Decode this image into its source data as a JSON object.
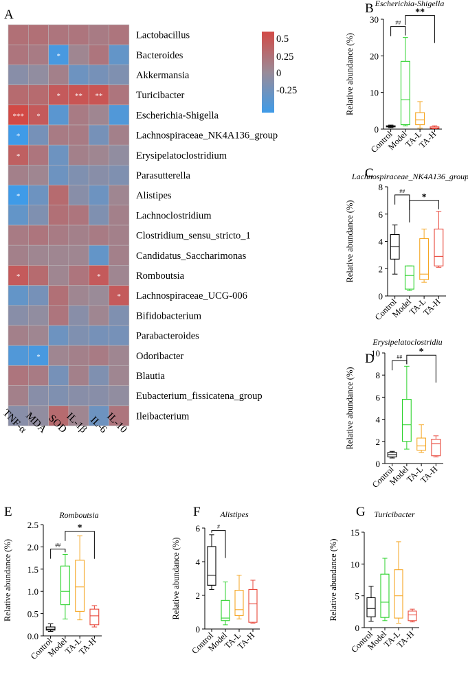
{
  "heatmap": {
    "panel_letter": "A",
    "type": "heatmap",
    "rows": [
      "Lactobacillus",
      "Bacteroides",
      "Akkermansia",
      "Turicibacter",
      "Escherichia-Shigella",
      "Lachnospiraceae_NK4A136_group",
      "Erysipelatoclostridium",
      "Parasutterella",
      "Alistipes",
      "Lachnoclostridium",
      "Clostridium_sensu_stricto_1",
      "Candidatus_Saccharimonas",
      "Romboutsia",
      "Lachnospiraceae_UCG-006",
      "Bifidobacterium",
      "Parabacteroides",
      "Odoribacter",
      "Blautia",
      "Eubacterium_fissicatena_group",
      "Ileibacterium"
    ],
    "columns": [
      "TNF-α",
      "MDA",
      "SOD",
      "IL-1β",
      "IL-6",
      "IL-10"
    ],
    "values": [
      [
        0.25,
        0.25,
        0.2,
        0.2,
        0.15,
        0.2
      ],
      [
        0.2,
        0.15,
        -0.45,
        0.05,
        0.2,
        -0.3
      ],
      [
        -0.1,
        -0.05,
        0.1,
        -0.25,
        -0.2,
        -0.15
      ],
      [
        0.3,
        0.3,
        0.45,
        0.5,
        0.5,
        0.2
      ],
      [
        0.6,
        0.45,
        -0.35,
        0.15,
        0.05,
        -0.4
      ],
      [
        -0.5,
        -0.2,
        0.15,
        0.15,
        -0.2,
        0.1
      ],
      [
        0.4,
        0.2,
        -0.25,
        0.1,
        0.05,
        -0.05
      ],
      [
        0.1,
        0.05,
        -0.25,
        -0.15,
        -0.1,
        -0.15
      ],
      [
        -0.5,
        -0.25,
        0.3,
        -0.1,
        -0.25,
        0.05
      ],
      [
        -0.3,
        -0.15,
        0.25,
        0.2,
        -0.15,
        0.1
      ],
      [
        0.15,
        0.2,
        0.15,
        0.1,
        0.15,
        0.1
      ],
      [
        0.1,
        0.05,
        0.05,
        0.05,
        -0.3,
        0.1
      ],
      [
        0.45,
        0.3,
        0.05,
        0.2,
        0.45,
        0.05
      ],
      [
        -0.3,
        -0.2,
        0.25,
        0.05,
        0.0,
        0.45
      ],
      [
        -0.1,
        -0.05,
        0.2,
        -0.1,
        0.05,
        -0.15
      ],
      [
        0.1,
        0.05,
        -0.25,
        -0.15,
        -0.2,
        -0.2
      ],
      [
        -0.4,
        -0.45,
        0.05,
        0.1,
        0.15,
        0.05
      ],
      [
        0.2,
        0.15,
        -0.2,
        0.1,
        -0.15,
        0.05
      ],
      [
        0.1,
        -0.1,
        -0.15,
        -0.1,
        -0.1,
        -0.05
      ],
      [
        -0.1,
        -0.05,
        0.3,
        0.05,
        -0.25,
        0.2
      ]
    ],
    "significance": [
      [
        "",
        "",
        "",
        "",
        "",
        ""
      ],
      [
        "",
        "",
        "*",
        "",
        "",
        ""
      ],
      [
        "",
        "",
        "",
        "",
        "",
        ""
      ],
      [
        "",
        "",
        "*",
        "**",
        "**",
        ""
      ],
      [
        "***",
        "*",
        "",
        "",
        "",
        ""
      ],
      [
        "*",
        "",
        "",
        "",
        "",
        ""
      ],
      [
        "*",
        "",
        "",
        "",
        "",
        ""
      ],
      [
        "",
        "",
        "",
        "",
        "",
        ""
      ],
      [
        "*",
        "",
        "",
        "",
        "",
        ""
      ],
      [
        "",
        "",
        "",
        "",
        "",
        ""
      ],
      [
        "",
        "",
        "",
        "",
        "",
        ""
      ],
      [
        "",
        "",
        "",
        "",
        "",
        ""
      ],
      [
        "*",
        "",
        "",
        "",
        "*",
        ""
      ],
      [
        "",
        "",
        "",
        "",
        "",
        "*"
      ],
      [
        "",
        "",
        "",
        "",
        "",
        ""
      ],
      [
        "",
        "",
        "",
        "",
        "",
        ""
      ],
      [
        "",
        "*",
        "",
        "",
        "",
        ""
      ],
      [
        "",
        "",
        "",
        "",
        "",
        ""
      ],
      [
        "",
        "",
        "",
        "",
        "",
        ""
      ],
      [
        "",
        "",
        "",
        "",
        "",
        ""
      ]
    ],
    "colorbar": {
      "ticks": [
        "0.5",
        "0.25",
        "0",
        "-0.25"
      ],
      "min": -0.5,
      "max": 0.6,
      "low_color": "#3f9be8",
      "mid_color": "#9a8b98",
      "high_color": "#d24a46"
    }
  },
  "chart_data": [
    {
      "panel_letter": "B",
      "type": "box",
      "title": "Escherichia-Shigella",
      "ylabel": "Relative abundance (%)",
      "ylim": [
        0,
        30
      ],
      "yticks": [
        "0",
        "10",
        "20",
        "30"
      ],
      "categories": [
        "Control",
        "Model",
        "TA-L",
        "TA-H"
      ],
      "colors": [
        "#000000",
        "#2bd22b",
        "#f5a623",
        "#e8463a"
      ],
      "boxes": [
        [
          0.4,
          0.6,
          0.7,
          0.9,
          1.1
        ],
        [
          0.9,
          1.2,
          8,
          18.5,
          25
        ],
        [
          0.3,
          1.2,
          2.5,
          4.5,
          7.5
        ],
        [
          0.1,
          0.2,
          0.3,
          0.6,
          0.9
        ]
      ],
      "annotations": [
        {
          "from": 0,
          "to": 1,
          "label": "##",
          "level": 28
        },
        {
          "from": 1,
          "to": 3,
          "label": "**",
          "level": 31
        }
      ]
    },
    {
      "panel_letter": "C",
      "type": "box",
      "title": "Lachnospiraceae_NK4A136_group",
      "ylabel": "Relative abundance (%)",
      "ylim": [
        0,
        8
      ],
      "yticks": [
        "0",
        "2",
        "4",
        "6",
        "8"
      ],
      "categories": [
        "Control",
        "Model",
        "TA-L",
        "TA-H"
      ],
      "colors": [
        "#000000",
        "#2bd22b",
        "#f5a623",
        "#e8463a"
      ],
      "boxes": [
        [
          1.6,
          2.7,
          3.6,
          4.5,
          5.2
        ],
        [
          0.4,
          0.5,
          1.5,
          2.2,
          2.2
        ],
        [
          1.0,
          1.2,
          1.6,
          4.2,
          4.9
        ],
        [
          2.1,
          2.2,
          2.9,
          4.9,
          6.2
        ]
      ],
      "annotations": [
        {
          "from": 0,
          "to": 1,
          "label": "##",
          "level": 7.4
        },
        {
          "from": 1,
          "to": 3,
          "label": "*",
          "level": 7.0
        }
      ]
    },
    {
      "panel_letter": "D",
      "type": "box",
      "title": "Erysipelatoclostridiu",
      "ylabel": "Relative abundance (%)",
      "ylim": [
        0,
        10
      ],
      "yticks": [
        "0",
        "2",
        "4",
        "6",
        "8",
        "10"
      ],
      "categories": [
        "Control",
        "Model",
        "TA-L",
        "TA-H"
      ],
      "colors": [
        "#000000",
        "#2bd22b",
        "#f5a623",
        "#e8463a"
      ],
      "boxes": [
        [
          0.5,
          0.6,
          0.8,
          1.0,
          1.1
        ],
        [
          1.3,
          2.0,
          3.5,
          5.8,
          8.8
        ],
        [
          1.0,
          1.2,
          1.6,
          2.3,
          3.5
        ],
        [
          0.6,
          0.7,
          1.8,
          2.2,
          2.5
        ]
      ],
      "annotations": [
        {
          "from": 0,
          "to": 1,
          "label": "##",
          "level": 9.3
        },
        {
          "from": 1,
          "to": 3,
          "label": "*",
          "level": 9.8
        }
      ]
    },
    {
      "panel_letter": "E",
      "type": "box",
      "title": "Romboutsia",
      "ylabel": "Relative abundance (%)",
      "ylim": [
        0,
        2.5
      ],
      "yticks": [
        "0.0",
        "0.5",
        "1.0",
        "1.5",
        "2.0",
        "2.5"
      ],
      "categories": [
        "Control",
        "Model",
        "TA-L",
        "TA-H"
      ],
      "colors": [
        "#000000",
        "#2bd22b",
        "#f5a623",
        "#e8463a"
      ],
      "boxes": [
        [
          0.1,
          0.13,
          0.15,
          0.2,
          0.27
        ],
        [
          0.38,
          0.7,
          1.0,
          1.57,
          1.83
        ],
        [
          0.36,
          0.55,
          1.1,
          1.7,
          2.25
        ],
        [
          0.2,
          0.25,
          0.45,
          0.6,
          0.68
        ]
      ],
      "annotations": [
        {
          "from": 0,
          "to": 1,
          "label": "##",
          "level": 1.95
        },
        {
          "from": 1,
          "to": 3,
          "label": "*",
          "level": 2.35
        }
      ]
    },
    {
      "panel_letter": "F",
      "type": "box",
      "title": "Alistipes",
      "ylabel": "Relative abundance (%)",
      "ylim": [
        0,
        6
      ],
      "yticks": [
        "0",
        "2",
        "4",
        "6"
      ],
      "categories": [
        "Control",
        "Model",
        "TA-L",
        "TA-H"
      ],
      "colors": [
        "#000000",
        "#2bd22b",
        "#f5a623",
        "#e8463a"
      ],
      "boxes": [
        [
          2.35,
          2.6,
          3.2,
          4.9,
          5.6
        ],
        [
          0.25,
          0.5,
          0.65,
          1.7,
          2.8
        ],
        [
          0.6,
          0.8,
          1.15,
          2.3,
          3.2
        ],
        [
          0.35,
          0.4,
          1.5,
          2.35,
          2.9
        ]
      ],
      "annotations": [
        {
          "from": 0,
          "to": 1,
          "label": "#",
          "level": 5.85
        }
      ]
    },
    {
      "panel_letter": "G",
      "type": "box",
      "title": "Turicibacter",
      "ylabel": "Relative abundance (%)",
      "ylim": [
        0,
        15
      ],
      "yticks": [
        "0",
        "5",
        "10",
        "15"
      ],
      "categories": [
        "Control",
        "Model",
        "TA-L",
        "TA-H"
      ],
      "colors": [
        "#000000",
        "#2bd22b",
        "#f5a623",
        "#e8463a"
      ],
      "boxes": [
        [
          1.0,
          1.7,
          3.0,
          4.7,
          6.5
        ],
        [
          1.1,
          1.6,
          4.0,
          8.4,
          10.9
        ],
        [
          0.7,
          1.5,
          5.0,
          9.1,
          13.5
        ],
        [
          0.9,
          1.1,
          2.0,
          2.6,
          2.9
        ]
      ],
      "annotations": []
    }
  ]
}
